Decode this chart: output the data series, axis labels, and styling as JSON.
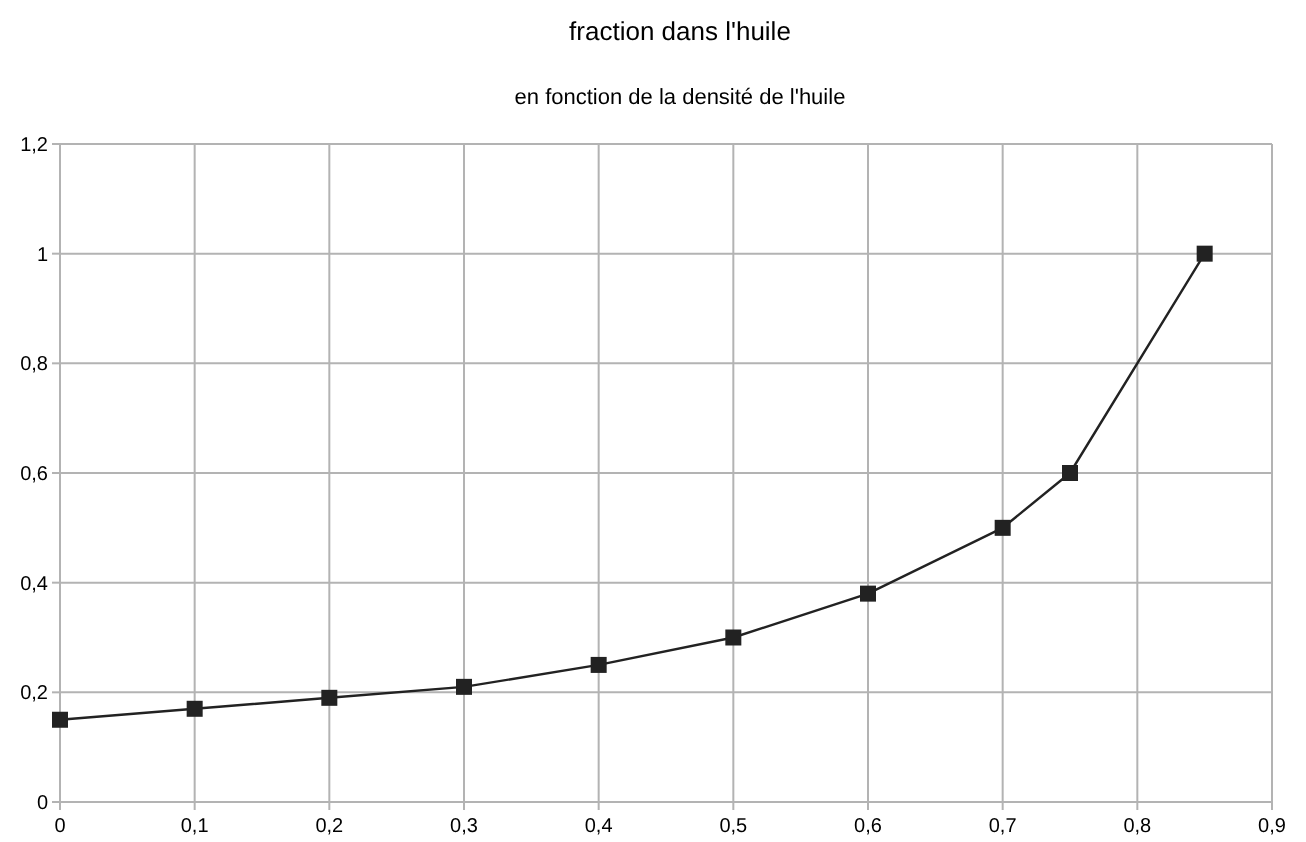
{
  "chart_data": {
    "type": "line",
    "title": "fraction dans l'huile",
    "subtitle": "en fonction de la densité de l'huile",
    "x": [
      0,
      0.1,
      0.2,
      0.3,
      0.4,
      0.5,
      0.6,
      0.7,
      0.75,
      0.85
    ],
    "series": [
      {
        "color": "#222222",
        "values": [
          0.15,
          0.17,
          0.19,
          0.21,
          0.25,
          0.3,
          0.38,
          0.5,
          0.6,
          1
        ]
      }
    ],
    "xlim": [
      0,
      0.9
    ],
    "ylim": [
      0,
      1.2
    ],
    "xticks": [
      0,
      {
        "value": 0.1,
        "label": "0,1"
      },
      {
        "value": 0.2,
        "label": "0,2"
      },
      {
        "value": 0.3,
        "label": "0,3"
      },
      {
        "value": 0.4,
        "label": "0,4"
      },
      {
        "value": 0.5,
        "label": "0,5"
      },
      {
        "value": 0.6,
        "label": "0,6"
      },
      {
        "value": 0.7,
        "label": "0,7"
      },
      {
        "value": 0.8,
        "label": "0,8"
      },
      {
        "value": 0.9,
        "label": "0,9"
      }
    ],
    "yticks": [
      0,
      {
        "value": 0.2,
        "label": "0,2"
      },
      {
        "value": 0.4,
        "label": "0,4"
      },
      {
        "value": 0.6,
        "label": "0,6"
      },
      {
        "value": 0.8,
        "label": "0,8"
      },
      1,
      {
        "value": 1.2,
        "label": "1,2"
      }
    ],
    "grid": true,
    "marker": "square",
    "line_style": "solid"
  }
}
